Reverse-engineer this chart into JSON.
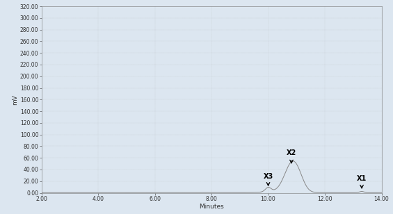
{
  "title": "",
  "xlabel": "Minutes",
  "ylabel": "mV",
  "xlim": [
    2.0,
    14.0
  ],
  "ylim": [
    0.0,
    320.0
  ],
  "xticks": [
    2.0,
    4.0,
    6.0,
    8.0,
    10.0,
    12.0,
    14.0
  ],
  "yticks": [
    0.0,
    20.0,
    40.0,
    60.0,
    80.0,
    100.0,
    120.0,
    140.0,
    160.0,
    180.0,
    200.0,
    220.0,
    240.0,
    260.0,
    280.0,
    300.0,
    320.0
  ],
  "line_color": "#888888",
  "background_color": "#dce6f0",
  "plot_bg_color": "#dce6f0",
  "baseline": 0.2,
  "font_family": "Arial",
  "tick_labelsize": 5.5,
  "xlabel_fontsize": 6.5,
  "ylabel_fontsize": 6.5
}
